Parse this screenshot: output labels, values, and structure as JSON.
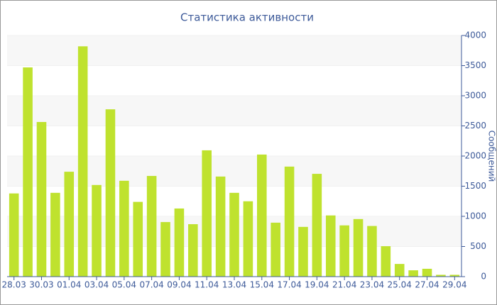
{
  "chart_data": {
    "type": "bar",
    "title": "Статистика активности",
    "y_axis_label": "Сообщений",
    "categories": [
      "28.03",
      null,
      "30.03",
      null,
      "01.04",
      null,
      "03.04",
      null,
      "05.04",
      null,
      "07.04",
      null,
      "09.04",
      null,
      "11.04",
      null,
      "13.04",
      null,
      "15.04",
      null,
      "17.04",
      null,
      "19.04",
      null,
      "21.04",
      null,
      "23.04",
      null,
      "25.04",
      null,
      "27.04",
      null,
      "29.04"
    ],
    "values": [
      1380,
      3470,
      2565,
      1390,
      1740,
      3820,
      1520,
      2775,
      1590,
      1240,
      1670,
      905,
      1130,
      870,
      2095,
      1660,
      1390,
      1250,
      2025,
      895,
      1825,
      825,
      1705,
      1015,
      850,
      955,
      840,
      505,
      210,
      105,
      130,
      30,
      30
    ],
    "color": "#bfe22e",
    "ylim": [
      0,
      4000
    ],
    "yticks": [
      0,
      500,
      1000,
      1500,
      2000,
      2500,
      3000,
      3500,
      4000
    ],
    "grid": true
  }
}
